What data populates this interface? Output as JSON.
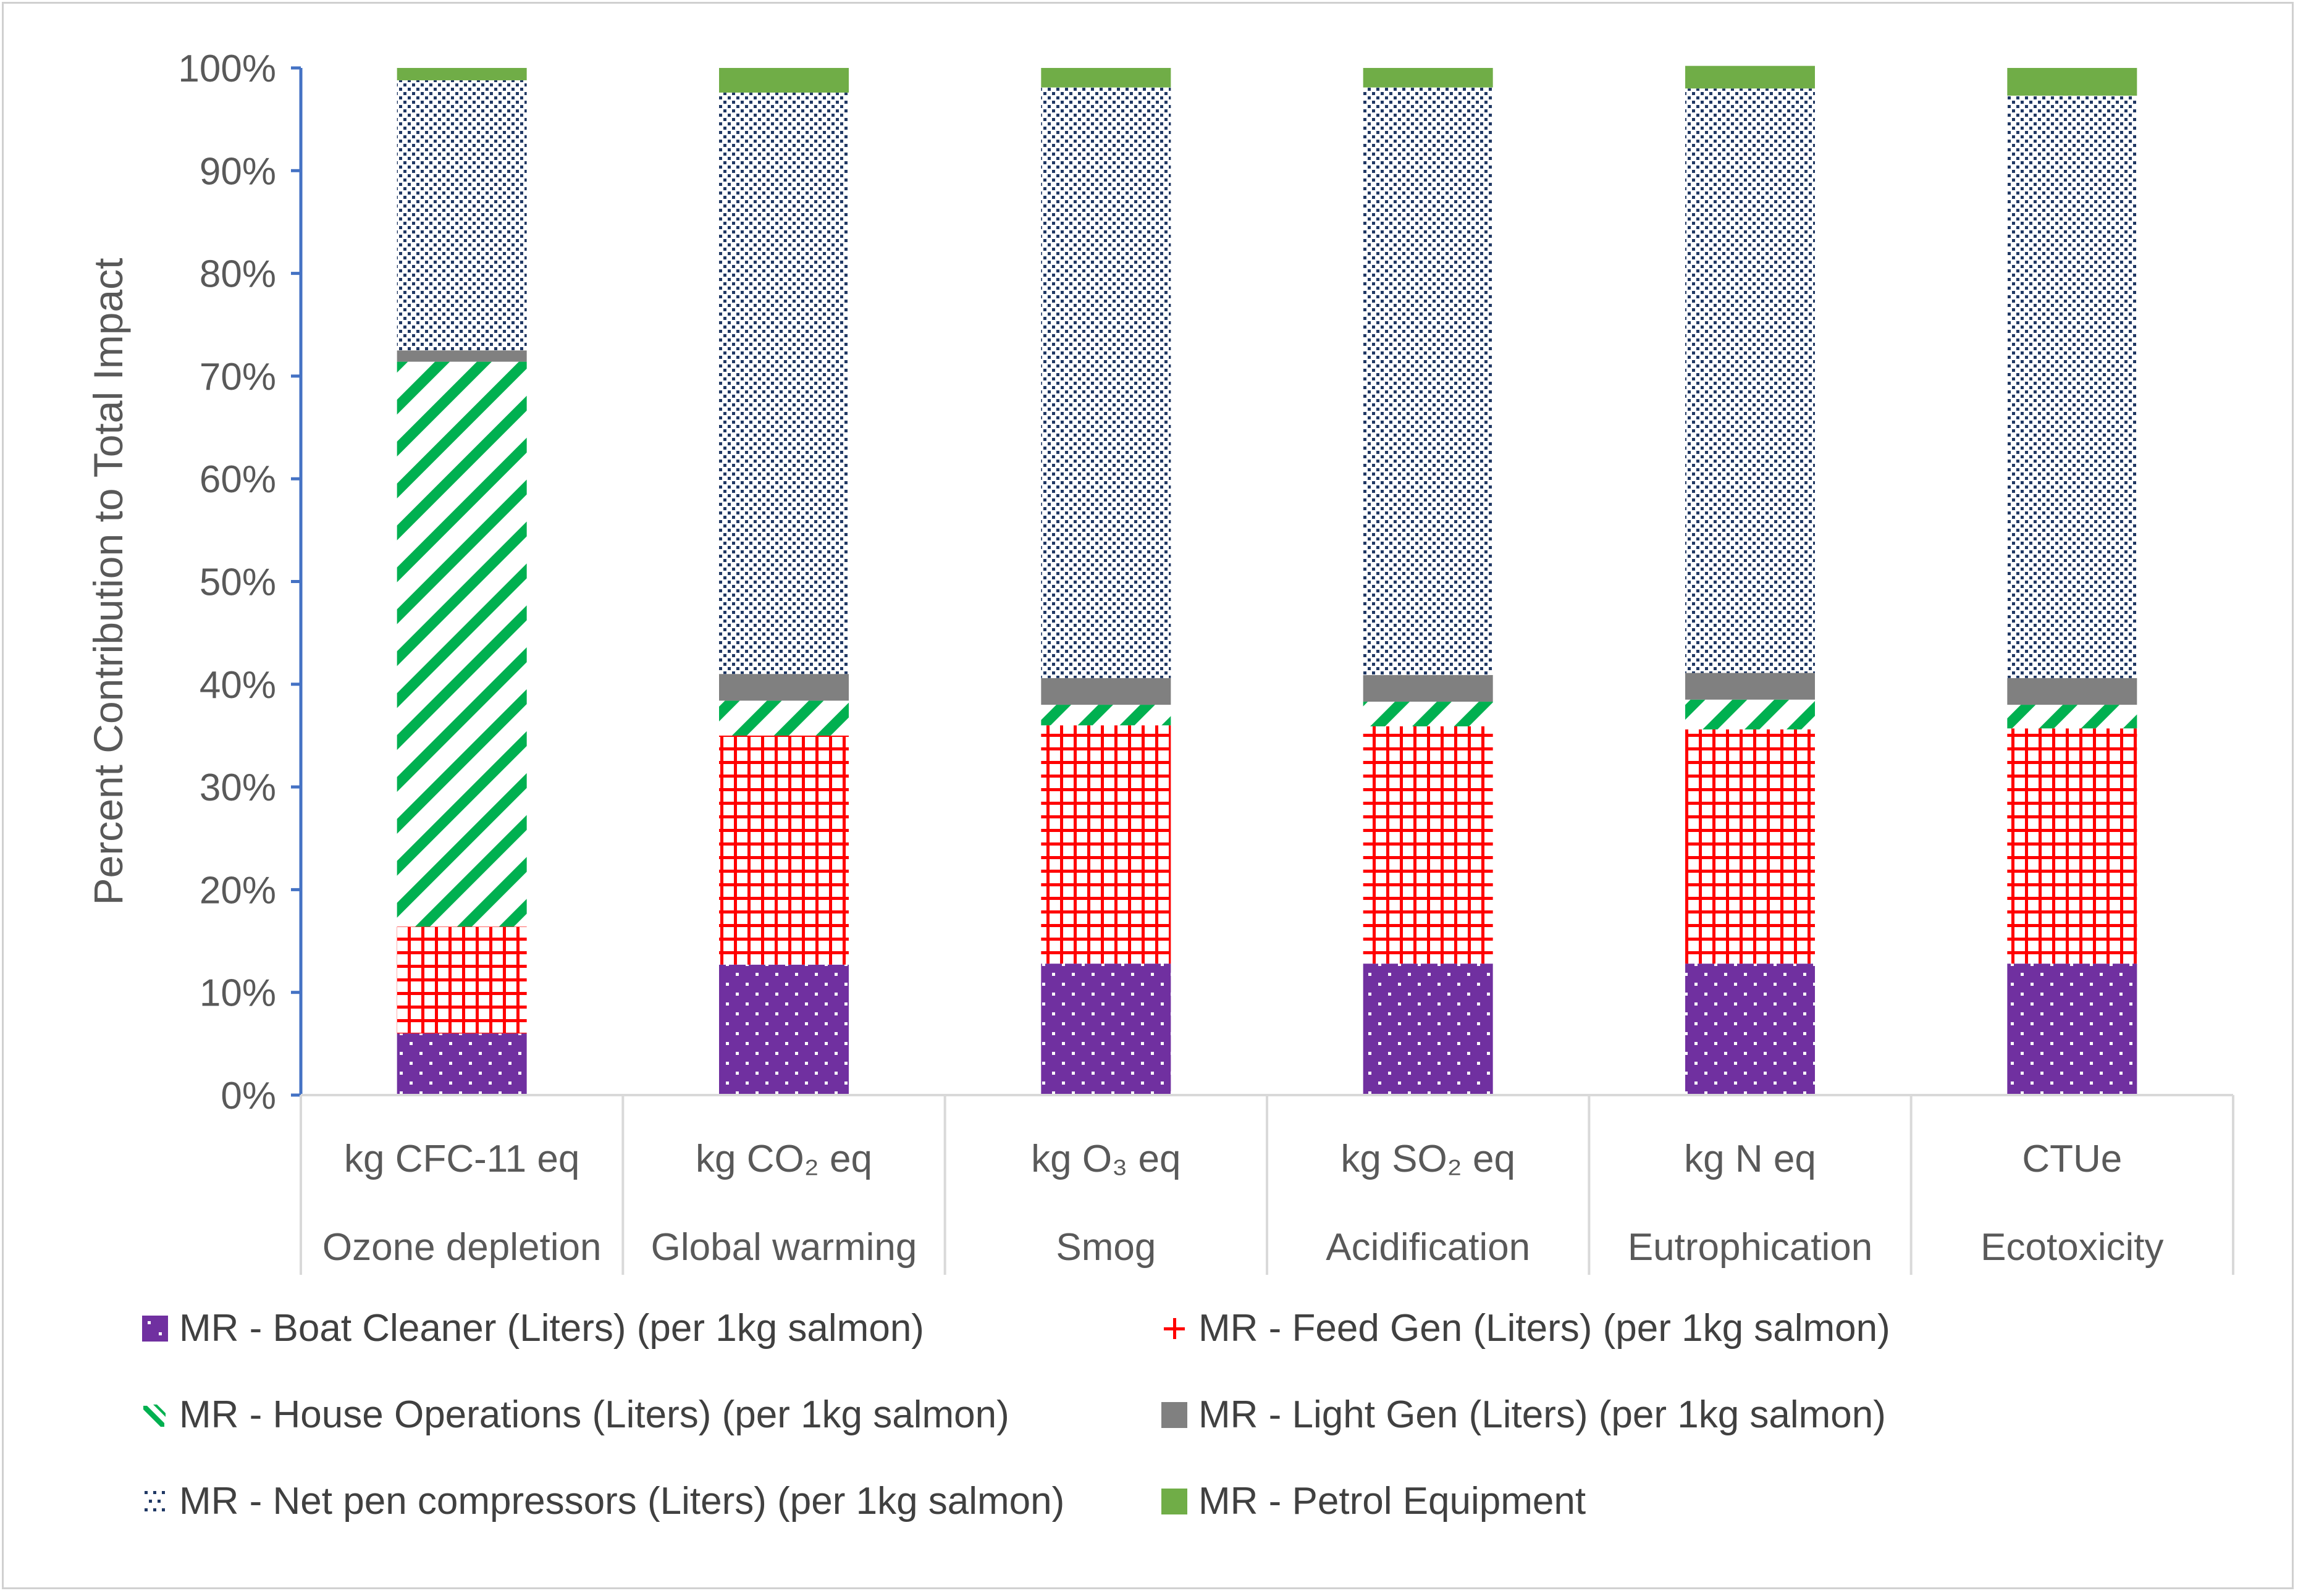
{
  "chart_data": {
    "type": "bar",
    "stacked": true,
    "ylabel": "Percent Contribution to Total Impact",
    "ylim": [
      0,
      100
    ],
    "yticks": [
      "0%",
      "10%",
      "20%",
      "30%",
      "40%",
      "50%",
      "60%",
      "70%",
      "80%",
      "90%",
      "100%"
    ],
    "categories": [
      {
        "unit": "kg CFC-11 eq",
        "name": "Ozone depletion"
      },
      {
        "unit": "kg CO₂ eq",
        "name": "Global warming"
      },
      {
        "unit": "kg O₃ eq",
        "name": "Smog"
      },
      {
        "unit": "kg SO₂ eq",
        "name": "Acidification"
      },
      {
        "unit": "kg N eq",
        "name": "Eutrophication"
      },
      {
        "unit": "CTUe",
        "name": "Ecotoxicity"
      }
    ],
    "series": [
      {
        "name": "MR - Boat Cleaner (Liters) (per 1kg salmon)",
        "color": "#7030a0",
        "pattern": "dots",
        "values": [
          6.0,
          12.7,
          12.8,
          12.8,
          12.8,
          12.8
        ]
      },
      {
        "name": "MR - Feed Gen (Liters) (per 1kg salmon)",
        "color": "#ff0000",
        "pattern": "grid",
        "values": [
          10.4,
          22.3,
          23.2,
          23.1,
          22.8,
          22.9
        ]
      },
      {
        "name": "MR - House Operations (Liters) (per 1kg salmon)",
        "color": "#00b050",
        "pattern": "diagonal",
        "values": [
          55.0,
          3.4,
          2.0,
          2.4,
          2.9,
          2.3
        ]
      },
      {
        "name": "MR - Light Gen (Liters) (per 1kg salmon)",
        "color": "#808080",
        "pattern": "solid",
        "values": [
          1.1,
          2.6,
          2.6,
          2.6,
          2.6,
          2.6
        ]
      },
      {
        "name": "MR - Net pen compressors (Liters) (per 1kg salmon)",
        "color": "#203864",
        "pattern": "finedots",
        "values": [
          26.3,
          56.6,
          57.5,
          57.2,
          56.9,
          56.7
        ]
      },
      {
        "name": "MR - Petrol Equipment",
        "color": "#70ad47",
        "pattern": "solid",
        "values": [
          1.2,
          2.4,
          1.9,
          1.9,
          2.2,
          2.7
        ]
      }
    ]
  }
}
